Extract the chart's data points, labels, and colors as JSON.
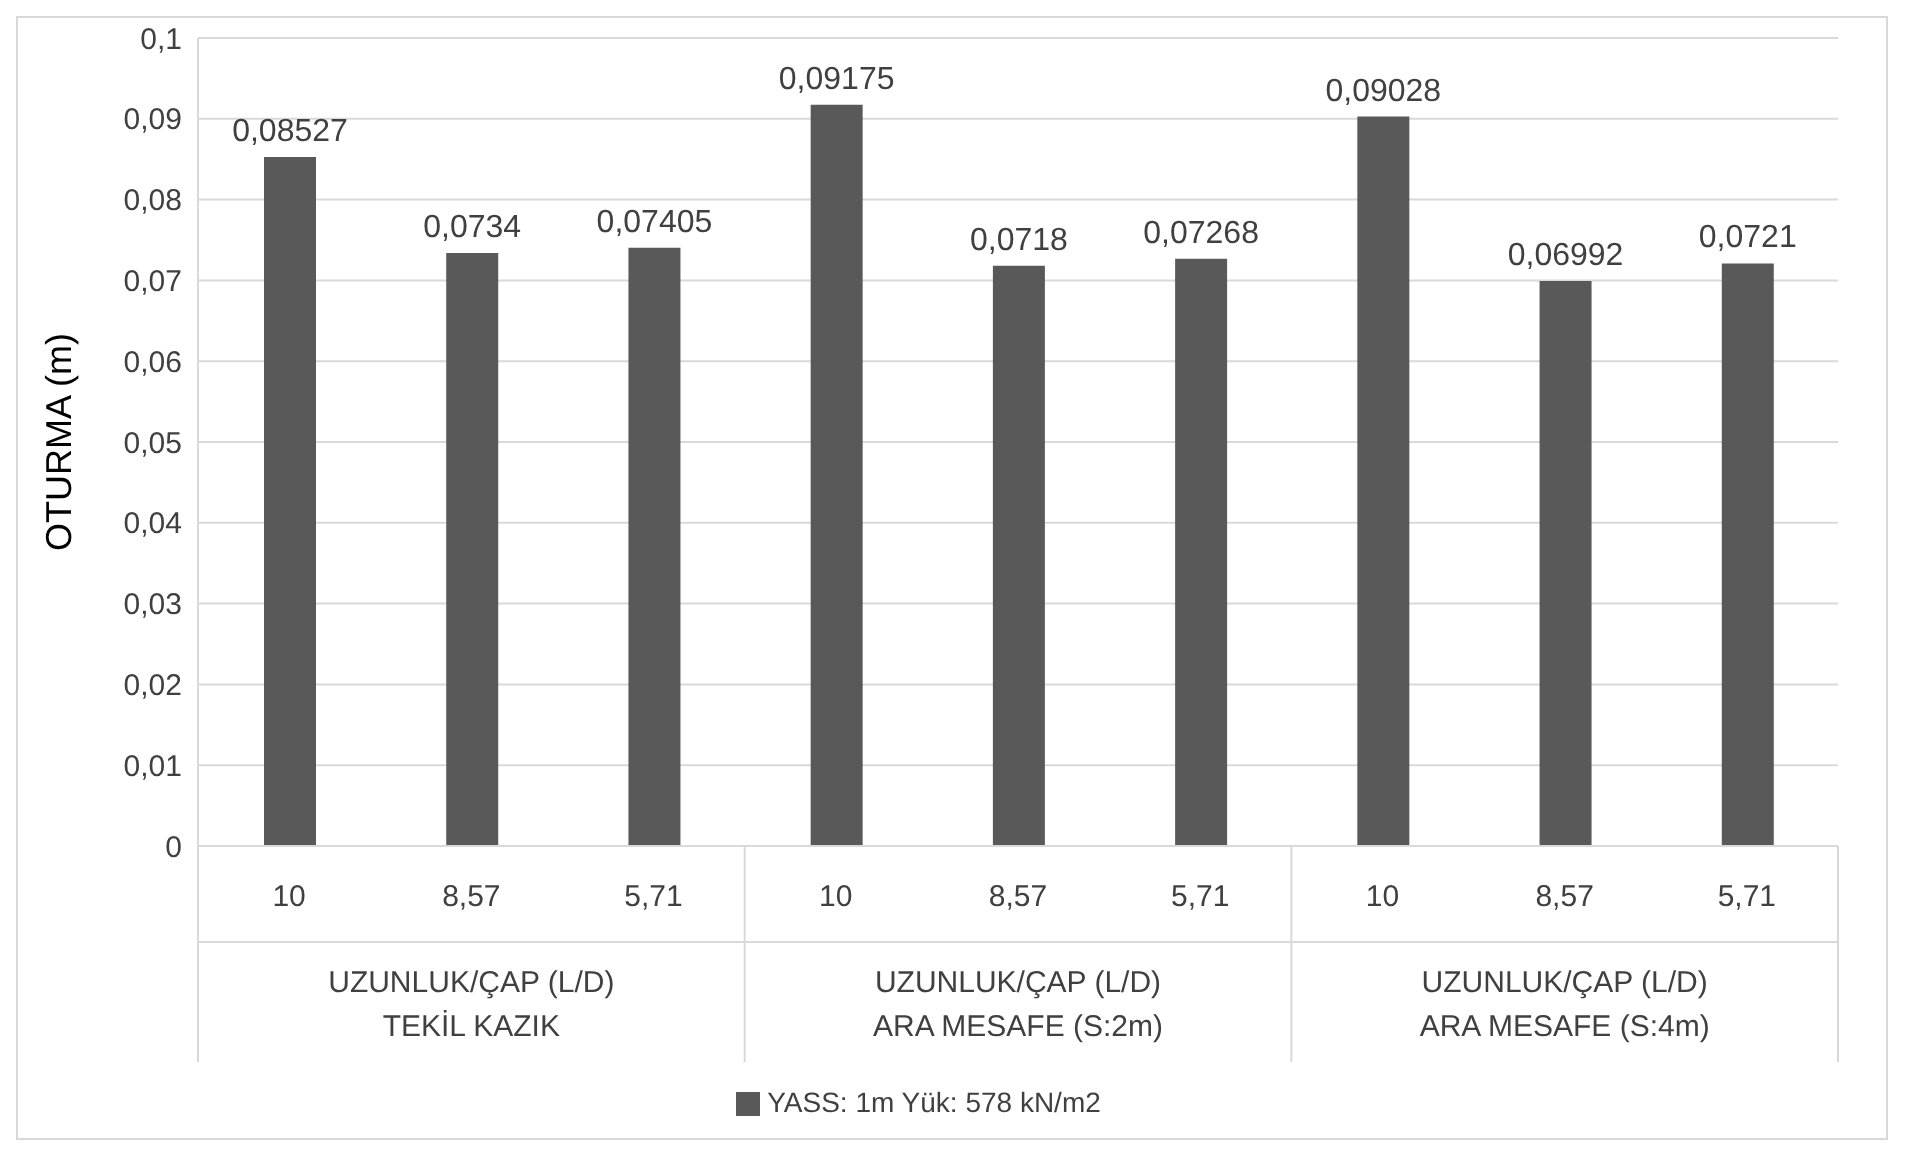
{
  "chart_data": {
    "type": "bar",
    "ylabel": "OTURMA (m)",
    "categories": [
      "10",
      "8,57",
      "5,71",
      "10",
      "8,57",
      "5,71",
      "10",
      "8,57",
      "5,71"
    ],
    "series": [
      {
        "name": "YASS: 1m Yük: 578 kN/m2",
        "color": "#595959",
        "values": [
          0.08527,
          0.0734,
          0.07405,
          0.09175,
          0.0718,
          0.07268,
          0.09028,
          0.06992,
          0.0721
        ],
        "value_labels": [
          "0,08527",
          "0,0734",
          "0,07405",
          "0,09175",
          "0,0718",
          "0,07268",
          "0,09028",
          "0,06992",
          "0,0721"
        ]
      }
    ],
    "ylim": [
      0,
      0.1
    ],
    "yticks": [
      {
        "value": 0,
        "label": "0"
      },
      {
        "value": 0.01,
        "label": "0,01"
      },
      {
        "value": 0.02,
        "label": "0,02"
      },
      {
        "value": 0.03,
        "label": "0,03"
      },
      {
        "value": 0.04,
        "label": "0,04"
      },
      {
        "value": 0.05,
        "label": "0,05"
      },
      {
        "value": 0.06,
        "label": "0,06"
      },
      {
        "value": 0.07,
        "label": "0,07"
      },
      {
        "value": 0.08,
        "label": "0,08"
      },
      {
        "value": 0.09,
        "label": "0,09"
      },
      {
        "value": 0.1,
        "label": "0,1"
      }
    ],
    "annotations": [
      "UZUNLUK/ÇAP (L/D)\nTEKİL KAZIK",
      "UZUNLUK/ÇAP (L/D)\nARA MESAFE (S:2m)",
      "UZUNLUK/ÇAP (L/D)\nARA MESAFE (S:4m)"
    ],
    "grid": "y",
    "legend": "bottom"
  }
}
